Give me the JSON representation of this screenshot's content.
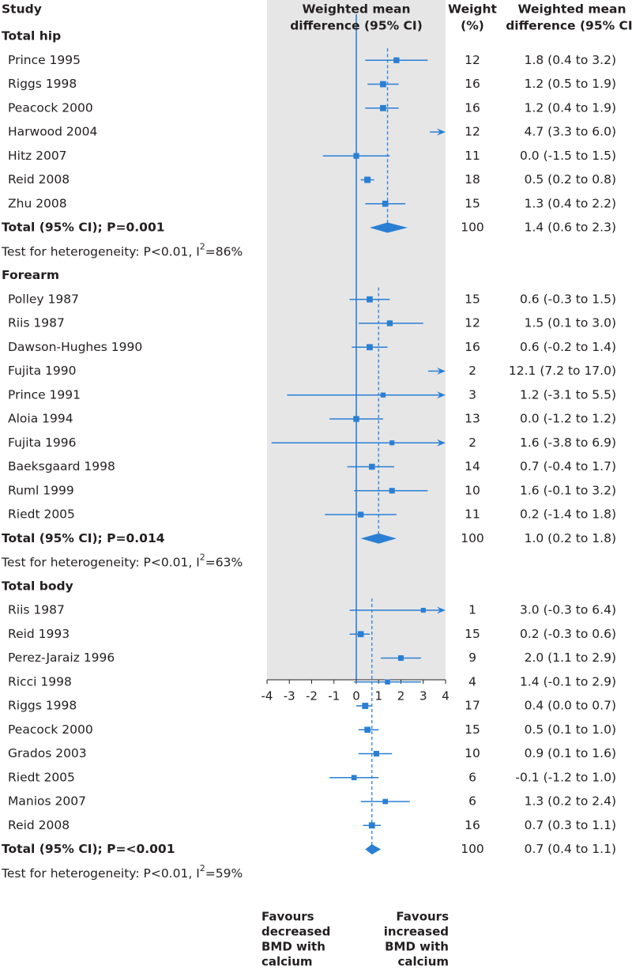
{
  "headers": {
    "study": "Study",
    "wmd_line1": "Weighted mean",
    "wmd_line2": "difference (95% CI)",
    "weight_line1": "Weight",
    "weight_line2": "(%)",
    "ci_line1": "Weighted mean",
    "ci_line2": "difference (95% CI)"
  },
  "favours_left": [
    "Favours",
    "decreased",
    "BMD with",
    "calcium"
  ],
  "favours_right": [
    "Favours",
    "increased",
    "BMD with",
    "calcium"
  ],
  "colors": {
    "accent": "#2a7fd4",
    "panel": "#e6e6e7",
    "text": "#231f20"
  },
  "chart_data": {
    "type": "forest",
    "xlabel": "",
    "xlim": [
      -4,
      4
    ],
    "xticks": [
      "-4",
      "-3",
      "-2",
      "-1",
      "0",
      "1",
      "2",
      "3",
      "4"
    ],
    "groups": [
      {
        "name": "Total hip",
        "studies": [
          {
            "label": "Prince 1995",
            "est": 1.8,
            "lo": 0.4,
            "hi": 3.2,
            "weight": "12",
            "ci_text": "1.8 (0.4 to 3.2)"
          },
          {
            "label": "Riggs 1998",
            "est": 1.2,
            "lo": 0.5,
            "hi": 1.9,
            "weight": "16",
            "ci_text": "1.2 (0.5 to 1.9)"
          },
          {
            "label": "Peacock 2000",
            "est": 1.2,
            "lo": 0.4,
            "hi": 1.9,
            "weight": "16",
            "ci_text": "1.2 (0.4 to 1.9)"
          },
          {
            "label": "Harwood 2004",
            "est": 4.7,
            "lo": 3.3,
            "hi": 6.0,
            "weight": "12",
            "ci_text": "4.7 (3.3 to 6.0)"
          },
          {
            "label": "Hitz 2007",
            "est": 0.0,
            "lo": -1.5,
            "hi": 1.5,
            "weight": "11",
            "ci_text": "0.0 (-1.5 to 1.5)"
          },
          {
            "label": "Reid 2008",
            "est": 0.5,
            "lo": 0.2,
            "hi": 0.8,
            "weight": "18",
            "ci_text": "0.5 (0.2 to 0.8)"
          },
          {
            "label": "Zhu 2008",
            "est": 1.3,
            "lo": 0.4,
            "hi": 2.2,
            "weight": "15",
            "ci_text": "1.3 (0.4 to 2.2)"
          }
        ],
        "total": {
          "label": "Total (95% CI); P=0.001",
          "est": 1.4,
          "lo": 0.6,
          "hi": 2.3,
          "weight": "100",
          "ci_text": "1.4 (0.6 to 2.3)"
        },
        "het_prefix": "Test for heterogeneity: P<0.01, I",
        "het_sup": "2",
        "het_suffix": "=86%"
      },
      {
        "name": "Forearm",
        "studies": [
          {
            "label": "Polley 1987",
            "est": 0.6,
            "lo": -0.3,
            "hi": 1.5,
            "weight": "15",
            "ci_text": "0.6 (-0.3 to 1.5)"
          },
          {
            "label": "Riis 1987",
            "est": 1.5,
            "lo": 0.1,
            "hi": 3.0,
            "weight": "12",
            "ci_text": "1.5 (0.1 to 3.0)"
          },
          {
            "label": "Dawson-Hughes 1990",
            "est": 0.6,
            "lo": -0.2,
            "hi": 1.4,
            "weight": "16",
            "ci_text": "0.6 (-0.2 to 1.4)"
          },
          {
            "label": "Fujita 1990",
            "est": 12.1,
            "lo": 7.2,
            "hi": 17.0,
            "weight": "2",
            "ci_text": "12.1 (7.2 to 17.0)"
          },
          {
            "label": "Prince 1991",
            "est": 1.2,
            "lo": -3.1,
            "hi": 5.5,
            "weight": "3",
            "ci_text": "1.2 (-3.1 to 5.5)"
          },
          {
            "label": "Aloia 1994",
            "est": 0.0,
            "lo": -1.2,
            "hi": 1.2,
            "weight": "13",
            "ci_text": "0.0 (-1.2 to 1.2)"
          },
          {
            "label": "Fujita 1996",
            "est": 1.6,
            "lo": -3.8,
            "hi": 6.9,
            "weight": "2",
            "ci_text": "1.6 (-3.8 to 6.9)"
          },
          {
            "label": "Baeksgaard 1998",
            "est": 0.7,
            "lo": -0.4,
            "hi": 1.7,
            "weight": "14",
            "ci_text": "0.7 (-0.4 to 1.7)"
          },
          {
            "label": "Ruml 1999",
            "est": 1.6,
            "lo": -0.1,
            "hi": 3.2,
            "weight": "10",
            "ci_text": "1.6 (-0.1 to 3.2)"
          },
          {
            "label": "Riedt 2005",
            "est": 0.2,
            "lo": -1.4,
            "hi": 1.8,
            "weight": "11",
            "ci_text": "0.2 (-1.4 to 1.8)"
          }
        ],
        "total": {
          "label": "Total (95% CI); P=0.014",
          "est": 1.0,
          "lo": 0.2,
          "hi": 1.8,
          "weight": "100",
          "ci_text": "1.0 (0.2 to 1.8)"
        },
        "het_prefix": "Test for heterogeneity: P<0.01, I",
        "het_sup": "2",
        "het_suffix": "=63%"
      },
      {
        "name": "Total body",
        "studies": [
          {
            "label": "Riis 1987",
            "est": 3.0,
            "lo": -0.3,
            "hi": 6.4,
            "weight": "1",
            "ci_text": "3.0 (-0.3 to 6.4)"
          },
          {
            "label": "Reid 1993",
            "est": 0.2,
            "lo": -0.3,
            "hi": 0.6,
            "weight": "15",
            "ci_text": "0.2 (-0.3 to 0.6)"
          },
          {
            "label": "Perez-Jaraiz 1996",
            "est": 2.0,
            "lo": 1.1,
            "hi": 2.9,
            "weight": "9",
            "ci_text": "2.0 (1.1 to 2.9)"
          },
          {
            "label": "Ricci 1998",
            "est": 1.4,
            "lo": -0.1,
            "hi": 2.9,
            "weight": "4",
            "ci_text": "1.4 (-0.1 to 2.9)"
          },
          {
            "label": "Riggs 1998",
            "est": 0.4,
            "lo": 0.0,
            "hi": 0.7,
            "weight": "17",
            "ci_text": "0.4 (0.0 to 0.7)"
          },
          {
            "label": "Peacock 2000",
            "est": 0.5,
            "lo": 0.1,
            "hi": 1.0,
            "weight": "15",
            "ci_text": "0.5 (0.1 to 1.0)"
          },
          {
            "label": "Grados 2003",
            "est": 0.9,
            "lo": 0.1,
            "hi": 1.6,
            "weight": "10",
            "ci_text": "0.9 (0.1 to 1.6)"
          },
          {
            "label": "Riedt 2005",
            "est": -0.1,
            "lo": -1.2,
            "hi": 1.0,
            "weight": "6",
            "ci_text": "-0.1 (-1.2 to 1.0)"
          },
          {
            "label": "Manios 2007",
            "est": 1.3,
            "lo": 0.2,
            "hi": 2.4,
            "weight": "6",
            "ci_text": "1.3 (0.2 to 2.4)"
          },
          {
            "label": "Reid 2008",
            "est": 0.7,
            "lo": 0.3,
            "hi": 1.1,
            "weight": "16",
            "ci_text": "0.7 (0.3 to 1.1)"
          }
        ],
        "total": {
          "label": "Total (95% CI); P=<0.001",
          "est": 0.7,
          "lo": 0.4,
          "hi": 1.1,
          "weight": "100",
          "ci_text": "0.7 (0.4 to 1.1)"
        },
        "het_prefix": "Test for heterogeneity: P<0.01, I",
        "het_sup": "2",
        "het_suffix": "=59%"
      }
    ]
  }
}
